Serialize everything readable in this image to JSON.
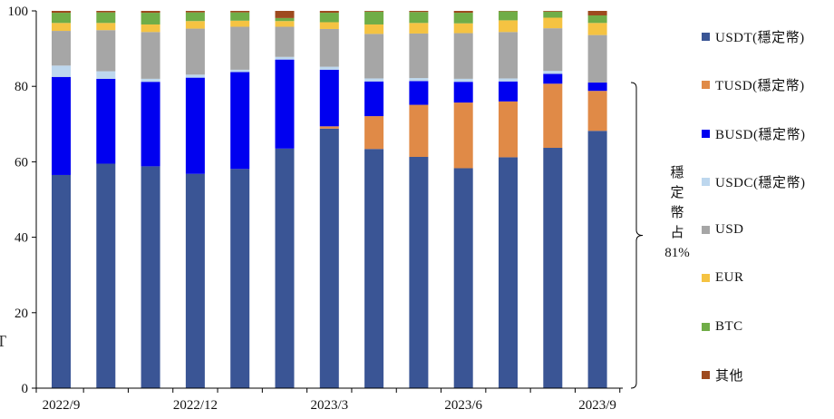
{
  "chart_data": {
    "type": "bar",
    "stacked": true,
    "ylim": [
      0,
      100
    ],
    "y_ticks": [
      0,
      20,
      40,
      60,
      80,
      100
    ],
    "x_tick_labels": [
      "2022/9",
      "2022/12",
      "2023/3",
      "2023/6",
      "2023/9"
    ],
    "categories": [
      "2022/9",
      "2022/10",
      "2022/11",
      "2022/12",
      "2023/1",
      "2023/2",
      "2023/3",
      "2023/4",
      "2023/5",
      "2023/6",
      "2023/7",
      "2023/8",
      "2023/9"
    ],
    "series": [
      {
        "name": "USDT(穩定幣)",
        "color": "#3A5595",
        "values": [
          56.5,
          59.5,
          58.8,
          56.8,
          58.1,
          63.5,
          68.8,
          63.4,
          61.3,
          58.3,
          61.2,
          63.7,
          68.2
        ]
      },
      {
        "name": "TUSD(穩定幣)",
        "color": "#E08A47",
        "values": [
          0,
          0,
          0,
          0,
          0,
          0,
          0.6,
          8.7,
          13.8,
          17.4,
          14.8,
          17.0,
          10.6
        ]
      },
      {
        "name": "BUSD(穩定幣)",
        "color": "#0000F0",
        "values": [
          26.0,
          22.5,
          22.4,
          25.5,
          25.7,
          23.6,
          15.0,
          9.2,
          6.3,
          5.5,
          5.3,
          2.6,
          2.2
        ]
      },
      {
        "name": "USDC(穩定幣)",
        "color": "#BDD7EE",
        "values": [
          3.0,
          2.0,
          0.8,
          0.8,
          0.6,
          0.7,
          0.8,
          0.8,
          0.8,
          0.8,
          0.8,
          0.8,
          0
        ]
      },
      {
        "name": "USD",
        "color": "#A6A6A6",
        "values": [
          9.2,
          10.9,
          12.4,
          12.2,
          11.4,
          8.0,
          10.0,
          11.8,
          11.8,
          12.1,
          12.3,
          11.3,
          12.6
        ]
      },
      {
        "name": "EUR",
        "color": "#F5C342",
        "values": [
          2.1,
          1.9,
          2.0,
          2.0,
          1.6,
          1.5,
          1.8,
          2.5,
          2.8,
          2.6,
          3.1,
          2.8,
          3.2
        ]
      },
      {
        "name": "BTC",
        "color": "#70AD47",
        "values": [
          2.7,
          2.8,
          3.1,
          2.3,
          2.2,
          0.8,
          2.5,
          3.4,
          2.9,
          2.8,
          2.4,
          1.6,
          2.0
        ]
      },
      {
        "name": "其他",
        "color": "#9E4A1E",
        "values": [
          0.5,
          0.4,
          0.5,
          0.4,
          0.4,
          1.9,
          0.5,
          0.2,
          0.3,
          0.5,
          0.1,
          0.2,
          1.2
        ]
      }
    ],
    "bracket": {
      "text_chars": [
        "穩",
        "定",
        "幣",
        "占"
      ],
      "value": "81%",
      "from_value": 0,
      "to_value": 81
    }
  },
  "left_edge_glyph": "T"
}
